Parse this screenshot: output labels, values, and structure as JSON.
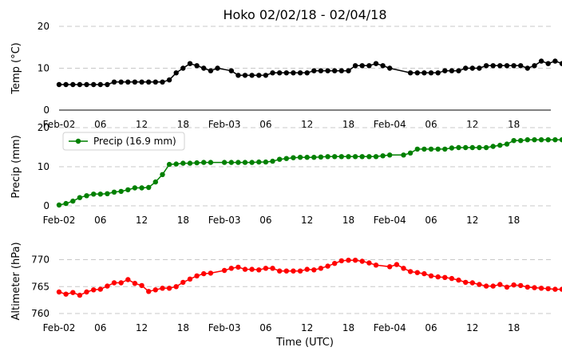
{
  "chart_data": {
    "type": "line",
    "title": "Hoko 02/02/18 - 02/04/18",
    "xlabel": "Time (UTC)",
    "x": {
      "start": "2018-02-02T00:00",
      "interval_hours": 1,
      "tick_labels": [
        "Feb-02",
        "06",
        "12",
        "18",
        "Feb-03",
        "06",
        "12",
        "18",
        "Feb-04",
        "06",
        "12",
        "18"
      ]
    },
    "grid": "horizontal dashed",
    "panels": [
      {
        "ylabel": "Temp (°C)",
        "ylim": [
          0,
          20
        ],
        "yticks": [
          "0",
          "10",
          "20"
        ],
        "color": "#000000",
        "series": [
          {
            "name": "",
            "values": [
              6.1,
              6.1,
              6.1,
              6.1,
              6.1,
              6.1,
              6.1,
              6.1,
              6.7,
              6.7,
              6.7,
              6.7,
              6.7,
              6.7,
              6.7,
              6.7,
              7.2,
              8.9,
              10.0,
              11.1,
              10.6,
              10.0,
              9.4,
              10.0,
              null,
              9.4,
              8.3,
              8.3,
              8.3,
              8.3,
              8.3,
              8.9,
              8.9,
              8.9,
              8.9,
              8.9,
              8.9,
              9.4,
              9.4,
              9.4,
              9.4,
              9.4,
              9.4,
              10.6,
              10.6,
              10.6,
              11.1,
              10.6,
              10.0,
              null,
              null,
              8.9,
              8.9,
              8.9,
              8.9,
              8.9,
              9.4,
              9.4,
              9.4,
              10.0,
              10.0,
              10.0,
              10.6,
              10.6,
              10.6,
              10.6,
              10.6,
              10.6,
              10.0,
              10.6,
              11.7,
              11.1,
              11.7,
              11.1
            ]
          }
        ]
      },
      {
        "ylabel": "Precip (mm)",
        "ylim": [
          0,
          20
        ],
        "yticks": [
          "0",
          "10",
          "20"
        ],
        "color": "#008000",
        "legend": {
          "label": "Precip (16.9 mm)",
          "position": "upper-left"
        },
        "series": [
          {
            "name": "Precip (16.9 mm)",
            "values": [
              0.2,
              0.6,
              1.2,
              2.1,
              2.6,
              3.0,
              3.0,
              3.1,
              3.5,
              3.7,
              4.1,
              4.6,
              4.6,
              4.7,
              6.1,
              8.0,
              10.6,
              10.7,
              10.9,
              10.9,
              11.0,
              11.1,
              11.1,
              null,
              11.1,
              11.1,
              11.1,
              11.1,
              11.1,
              11.2,
              11.2,
              11.4,
              11.9,
              12.1,
              12.3,
              12.4,
              12.4,
              12.4,
              12.5,
              12.6,
              12.6,
              12.6,
              12.6,
              12.6,
              12.6,
              12.6,
              12.6,
              12.8,
              13.0,
              null,
              13.0,
              13.5,
              14.5,
              14.5,
              14.5,
              14.5,
              14.5,
              14.8,
              14.9,
              14.9,
              14.9,
              14.9,
              14.9,
              15.2,
              15.5,
              15.8,
              16.7,
              16.7,
              16.9,
              16.9,
              16.9,
              16.9,
              16.9,
              16.9
            ]
          }
        ]
      },
      {
        "ylabel": "Altimeter (hPa)",
        "ylim": [
          760,
          772
        ],
        "yticks": [
          "760",
          "765",
          "770"
        ],
        "color": "#ff0000",
        "series": [
          {
            "name": "",
            "values": [
              764.0,
              763.6,
              763.9,
              763.4,
              764.0,
              764.4,
              764.5,
              765.1,
              765.7,
              765.7,
              766.3,
              765.6,
              765.2,
              764.1,
              764.4,
              764.7,
              764.7,
              765.0,
              765.8,
              766.4,
              767.0,
              767.4,
              767.5,
              null,
              768.0,
              768.4,
              768.6,
              768.2,
              768.2,
              768.1,
              768.4,
              768.4,
              767.9,
              767.9,
              767.9,
              767.9,
              768.2,
              768.1,
              768.4,
              768.8,
              769.3,
              769.8,
              769.9,
              769.9,
              769.7,
              769.4,
              769.0,
              null,
              768.7,
              769.1,
              768.4,
              767.8,
              767.6,
              767.4,
              767.0,
              766.8,
              766.7,
              766.5,
              766.2,
              765.8,
              765.7,
              765.4,
              765.1,
              765.1,
              765.4,
              764.9,
              765.3,
              765.2,
              764.9,
              764.8,
              764.7,
              764.6,
              764.5,
              764.5
            ]
          }
        ]
      }
    ]
  }
}
